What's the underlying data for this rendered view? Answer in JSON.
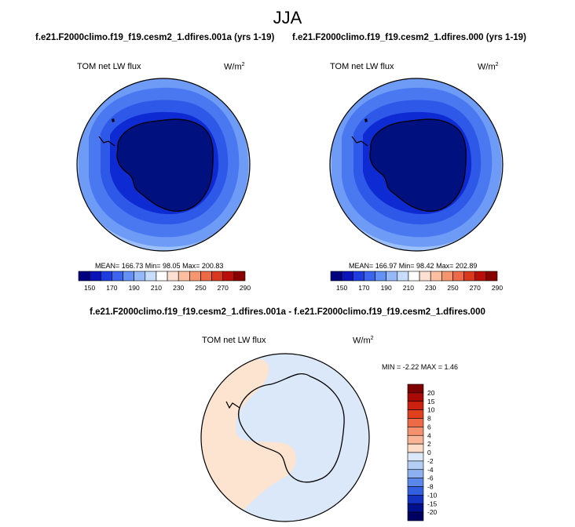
{
  "season": "JJA",
  "panels": [
    {
      "case_title": "f.e21.F2000climo.f19_f19.cesm2_1.dfires.001a (yrs 1-19)",
      "variable": "TOM net LW flux",
      "units_base": "W/m",
      "units_exp": "2",
      "stats": "MEAN= 166.73  Min=  98.05  Max= 200.83"
    },
    {
      "case_title": "f.e21.F2000climo.f19_f19.cesm2_1.dfires.000 (yrs 1-19)",
      "variable": "TOM net LW flux",
      "units_base": "W/m",
      "units_exp": "2",
      "stats": "MEAN= 166.97  Min=  98.42  Max= 202.89"
    }
  ],
  "colorbar_top": {
    "labels": [
      "150",
      "170",
      "190",
      "210",
      "230",
      "250",
      "270",
      "290"
    ],
    "colors": [
      "#00007f",
      "#0a14b8",
      "#1e3ce0",
      "#3c64ef",
      "#6491f5",
      "#96b9fa",
      "#c8dcfc",
      "#ffffff",
      "#fde0d2",
      "#fbbfa2",
      "#f5966e",
      "#ec6a46",
      "#d8381e",
      "#b81008",
      "#880000"
    ]
  },
  "diff_title": "f.e21.F2000climo.f19_f19.cesm2_1.dfires.001a - f.e21.F2000climo.f19_f19.cesm2_1.dfires.000",
  "diff_panel": {
    "variable": "TOM net LW flux",
    "units_base": "W/m",
    "units_exp": "2",
    "minmax": "MIN = -2.22 MAX =  1.46"
  },
  "colorbar_diff": {
    "labels": [
      "20",
      "15",
      "10",
      "8",
      "6",
      "4",
      "2",
      "0",
      "-2",
      "-4",
      "-6",
      "-8",
      "-10",
      "-15",
      "-20"
    ],
    "colors": [
      "#7f0000",
      "#a80a05",
      "#cc2010",
      "#e0401e",
      "#ee6a46",
      "#f5916e",
      "#fab496",
      "#fddcc8",
      "#dae8fa",
      "#b4cdf5",
      "#8cb0f0",
      "#5a87eb",
      "#3260e0",
      "#1432c0",
      "#00108c",
      "#000060"
    ]
  },
  "map_colors": {
    "antarctica": "#00107f",
    "ring_inner": "#0e2ad2",
    "ring_mid": "#2e58e8",
    "ring_outer": "#4a78f0",
    "ring_edge": "#6e9bf6",
    "ocean_light": "#9cc0fa",
    "diff_neg": "#dae8fa",
    "diff_pos": "#fde4d0"
  }
}
